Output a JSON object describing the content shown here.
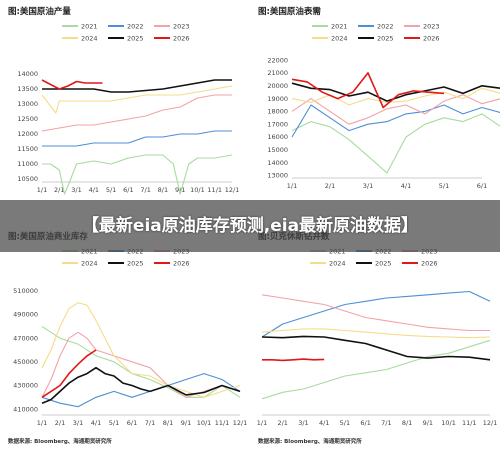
{
  "banner": {
    "text": "【最新eia原油库存预测,eia最新原油数据】"
  },
  "colors": {
    "2021": "#a8dba0",
    "2022": "#4d8fd6",
    "2023": "#f2a3a8",
    "2024": "#f5dc8a",
    "2025": "#111111",
    "2026": "#e01818"
  },
  "chart_data": [
    {
      "type": "line",
      "title": "图:美国原油产量",
      "source": "",
      "legend": [
        "2021",
        "2022",
        "2023",
        "2024",
        "2025",
        "2026"
      ],
      "x_ticks": [
        "1/1",
        "2/1",
        "3/1",
        "4/1",
        "5/1",
        "6/1",
        "7/1",
        "8/1",
        "9/1",
        "10/1",
        "11/1",
        "12/1"
      ],
      "y_ticks": [
        10500,
        11000,
        11500,
        12000,
        12500,
        13000,
        13500,
        14000
      ],
      "ylim": [
        10400,
        14400
      ],
      "series": [
        {
          "name": "2021",
          "x": [
            0,
            0.5,
            1,
            1.3,
            1.6,
            2,
            3,
            4,
            5,
            6,
            7,
            7.6,
            8,
            8.5,
            9,
            10,
            11
          ],
          "y": [
            11000,
            11000,
            10800,
            10000,
            10400,
            11000,
            11100,
            11000,
            11200,
            11300,
            11300,
            11000,
            10000,
            11000,
            11200,
            11200,
            11300
          ]
        },
        {
          "name": "2022",
          "x": [
            0,
            1,
            2,
            3,
            4,
            5,
            6,
            7,
            8,
            9,
            10,
            11
          ],
          "y": [
            11600,
            11600,
            11600,
            11700,
            11700,
            11700,
            11900,
            11900,
            12000,
            12000,
            12100,
            12100
          ]
        },
        {
          "name": "2023",
          "x": [
            0,
            1,
            2,
            3,
            4,
            5,
            6,
            7,
            8,
            9,
            10,
            11
          ],
          "y": [
            12100,
            12200,
            12300,
            12300,
            12400,
            12500,
            12600,
            12800,
            12900,
            13200,
            13300,
            13300
          ]
        },
        {
          "name": "2024",
          "x": [
            0,
            0.4,
            0.8,
            1,
            2,
            3,
            4,
            5,
            6,
            7,
            8,
            9,
            10,
            11
          ],
          "y": [
            13300,
            13000,
            12700,
            13100,
            13100,
            13100,
            13100,
            13200,
            13300,
            13300,
            13300,
            13400,
            13500,
            13600
          ]
        },
        {
          "name": "2025",
          "x": [
            0,
            1,
            2,
            3,
            4,
            5,
            6,
            7,
            8,
            9,
            10,
            11
          ],
          "y": [
            13500,
            13500,
            13500,
            13500,
            13400,
            13400,
            13450,
            13500,
            13600,
            13700,
            13800,
            13800
          ]
        },
        {
          "name": "2026",
          "x": [
            0,
            0.5,
            1,
            1.5,
            2,
            2.5,
            3,
            3.5
          ],
          "y": [
            13800,
            13650,
            13500,
            13600,
            13750,
            13700,
            13700,
            13700
          ]
        }
      ]
    },
    {
      "type": "line",
      "title": "图:美国原油表需",
      "source": "",
      "legend": [
        "2021",
        "2022",
        "2023",
        "2024",
        "2025",
        "2026"
      ],
      "x_ticks": [
        "1/1",
        "2/1",
        "3/1",
        "4/1",
        "5/1",
        "6/1"
      ],
      "y_ticks": [
        13000,
        14000,
        15000,
        16000,
        17000,
        18000,
        19000,
        20000,
        21000,
        22000
      ],
      "ylim": [
        12800,
        22400
      ],
      "series": [
        {
          "name": "2021",
          "x": [
            0,
            0.5,
            1,
            1.5,
            2,
            2.5,
            3,
            3.5,
            4,
            4.5,
            5,
            5.5,
            6,
            6.5
          ],
          "y": [
            16500,
            17200,
            16800,
            15800,
            14500,
            13200,
            16000,
            17000,
            17500,
            17200,
            17800,
            16800,
            17500,
            17200
          ]
        },
        {
          "name": "2022",
          "x": [
            0,
            0.5,
            1,
            1.5,
            2,
            2.5,
            3,
            3.5,
            4,
            4.5,
            5,
            5.5,
            6,
            6.5
          ],
          "y": [
            16000,
            18500,
            17500,
            16500,
            17000,
            17200,
            17800,
            18000,
            18500,
            17800,
            18300,
            17900,
            18600,
            17200
          ]
        },
        {
          "name": "2023",
          "x": [
            0,
            0.5,
            1,
            1.5,
            2,
            2.5,
            3,
            3.5,
            4,
            4.5,
            5,
            5.5,
            6,
            6.5
          ],
          "y": [
            18000,
            19000,
            18000,
            17000,
            17500,
            18200,
            18500,
            17800,
            18800,
            19300,
            18600,
            19000,
            19500,
            18300
          ]
        },
        {
          "name": "2024",
          "x": [
            0,
            0.5,
            1,
            1.5,
            2,
            2.5,
            3,
            3.5,
            4,
            4.5,
            5,
            5.5,
            6,
            6.5
          ],
          "y": [
            19000,
            18700,
            19300,
            18500,
            19000,
            18700,
            18800,
            19200,
            19500,
            19000,
            19800,
            19400,
            20000,
            19600
          ]
        },
        {
          "name": "2025",
          "x": [
            0,
            0.5,
            1,
            1.5,
            2,
            2.5,
            3,
            3.5,
            4,
            4.5,
            5,
            5.5,
            6,
            6.5
          ],
          "y": [
            20200,
            19800,
            19700,
            19200,
            19500,
            18800,
            19300,
            19600,
            19900,
            19400,
            20000,
            19800,
            20300,
            18400
          ]
        },
        {
          "name": "2026",
          "x": [
            0,
            0.4,
            0.8,
            1.2,
            1.6,
            2,
            2.4,
            2.8,
            3.2,
            3.6,
            4
          ],
          "y": [
            20500,
            20300,
            19500,
            19000,
            19500,
            21000,
            18300,
            19300,
            19600,
            19500,
            19400
          ]
        }
      ]
    },
    {
      "type": "line",
      "title": "图:美国原油商业库存",
      "source": "数据来源: Bloomberg、海通期货研究所",
      "legend": [
        "2021",
        "2022",
        "2023",
        "2024",
        "2025",
        "2026"
      ],
      "x_ticks": [
        "1/1",
        "2/1",
        "3/1",
        "4/1",
        "5/1",
        "6/1",
        "7/1",
        "8/1",
        "9/1",
        "10/1",
        "11/1",
        "12/1"
      ],
      "y_ticks": [
        410000,
        430000,
        450000,
        470000,
        490000,
        510000
      ],
      "ylim": [
        405000,
        515000
      ],
      "series": [
        {
          "name": "2021",
          "x": [
            0,
            1,
            2,
            3,
            4,
            5,
            6,
            7,
            8,
            9,
            10,
            11
          ],
          "y": [
            480000,
            470000,
            465000,
            455000,
            450000,
            440000,
            435000,
            428000,
            420000,
            420000,
            430000,
            420000
          ]
        },
        {
          "name": "2022",
          "x": [
            0,
            1,
            2,
            3,
            4,
            5,
            6,
            7,
            8,
            9,
            10,
            11
          ],
          "y": [
            420000,
            415000,
            412000,
            420000,
            425000,
            420000,
            425000,
            430000,
            435000,
            440000,
            435000,
            425000
          ]
        },
        {
          "name": "2023",
          "x": [
            0,
            0.5,
            1,
            1.5,
            2,
            2.5,
            3,
            4,
            5,
            6,
            7,
            8,
            9,
            10,
            11
          ],
          "y": [
            420000,
            435000,
            455000,
            470000,
            475000,
            470000,
            460000,
            455000,
            450000,
            445000,
            430000,
            420000,
            425000,
            430000,
            425000
          ]
        },
        {
          "name": "2024",
          "x": [
            0,
            0.5,
            1,
            1.5,
            2,
            2.5,
            3,
            3.5,
            4,
            5,
            6,
            7,
            8,
            9,
            10,
            11
          ],
          "y": [
            445000,
            460000,
            480000,
            495000,
            500000,
            498000,
            485000,
            470000,
            455000,
            440000,
            438000,
            430000,
            425000,
            420000,
            425000,
            430000
          ]
        },
        {
          "name": "2025",
          "x": [
            0,
            0.5,
            1,
            1.5,
            2,
            2.5,
            3,
            3.5,
            4,
            4.5,
            5,
            5.5,
            6,
            7,
            8,
            9,
            10,
            11
          ],
          "y": [
            415000,
            418000,
            425000,
            432000,
            437000,
            440000,
            445000,
            440000,
            438000,
            432000,
            430000,
            427000,
            425000,
            430000,
            422000,
            424000,
            430000,
            425000
          ]
        },
        {
          "name": "2026",
          "x": [
            0,
            0.5,
            1,
            1.5,
            2,
            2.5,
            3
          ],
          "y": [
            420000,
            425000,
            430000,
            440000,
            448000,
            455000,
            460000
          ]
        }
      ]
    },
    {
      "type": "line",
      "title": "图:贝克休斯钻井数",
      "source": "数据来源: Bloomberg、海通期货研究所",
      "legend": [
        "2021",
        "2022",
        "2023",
        "2024",
        "2025",
        "2026"
      ],
      "x_ticks": [
        "1/1",
        "2/1",
        "3/1",
        "4/1",
        "5/1",
        "6/1",
        "7/1",
        "8/1",
        "9/1",
        "10/1",
        "11/1",
        "12/1"
      ],
      "y_ticks": [],
      "ylim": [
        240,
        640
      ],
      "series": [
        {
          "name": "2021",
          "x": [
            0,
            1,
            2,
            3,
            4,
            5,
            6,
            7,
            8,
            9,
            10,
            11
          ],
          "y": [
            290,
            310,
            320,
            340,
            360,
            370,
            380,
            400,
            420,
            430,
            450,
            470
          ]
        },
        {
          "name": "2022",
          "x": [
            0,
            1,
            2,
            3,
            4,
            5,
            6,
            7,
            8,
            9,
            10,
            11
          ],
          "y": [
            480,
            520,
            540,
            560,
            580,
            590,
            600,
            605,
            610,
            615,
            620,
            590
          ]
        },
        {
          "name": "2023",
          "x": [
            0,
            1,
            2,
            3,
            4,
            5,
            6,
            7,
            8,
            9,
            10,
            11
          ],
          "y": [
            610,
            600,
            590,
            580,
            560,
            540,
            530,
            520,
            510,
            505,
            500,
            500
          ]
        },
        {
          "name": "2024",
          "x": [
            0,
            1,
            2,
            3,
            4,
            5,
            6,
            7,
            8,
            9,
            10,
            11
          ],
          "y": [
            495,
            500,
            505,
            505,
            500,
            495,
            490,
            485,
            482,
            480,
            478,
            480
          ]
        },
        {
          "name": "2025",
          "x": [
            0,
            1,
            2,
            3,
            4,
            5,
            6,
            7,
            8,
            9,
            10,
            11
          ],
          "y": [
            480,
            478,
            482,
            480,
            470,
            460,
            440,
            420,
            415,
            420,
            418,
            410
          ]
        },
        {
          "name": "2026",
          "x": [
            0,
            0.5,
            1,
            1.5,
            2,
            2.5,
            3
          ],
          "y": [
            410,
            410,
            408,
            410,
            412,
            410,
            411
          ]
        }
      ]
    }
  ]
}
